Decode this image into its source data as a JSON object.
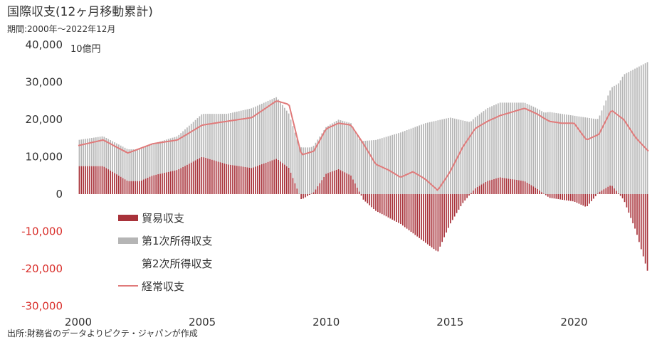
{
  "title": "国際収支(12ヶ月移動累計)",
  "subtitle": "期間:2000年〜2022年12月",
  "unit_label": "10億円",
  "source": "出所:財務省のデータよりピクテ・ジャパンが作成",
  "colors": {
    "trade": "#a8323a",
    "primary_income": "#b5b5b5",
    "secondary_income": "#ffffff",
    "current_account": "#e07a7a",
    "negative_tick": "#d9302c",
    "positive_tick": "#333333"
  },
  "chart_data": {
    "type": "bar",
    "stacked": true,
    "x_range": [
      2000,
      2023
    ],
    "ylim": [
      -30000,
      40000
    ],
    "y_ticks": [
      "40,000",
      "30,000",
      "20,000",
      "10,000",
      "0",
      "-10,000",
      "-20,000",
      "-30,000"
    ],
    "y_tick_values": [
      40000,
      30000,
      20000,
      10000,
      0,
      -10000,
      -20000,
      -30000
    ],
    "x_ticks": [
      "2000",
      "2005",
      "2010",
      "2015",
      "2020"
    ],
    "x_tick_values": [
      2000,
      2005,
      2010,
      2015,
      2020
    ],
    "grid": false,
    "legend_position": "lower-left",
    "series": [
      {
        "name": "貿易収支",
        "style": "bar",
        "keypoints": [
          [
            2000.0,
            7500
          ],
          [
            2001.0,
            7500
          ],
          [
            2001.5,
            5500
          ],
          [
            2002.0,
            3500
          ],
          [
            2002.5,
            3500
          ],
          [
            2003.0,
            5000
          ],
          [
            2004.0,
            6500
          ],
          [
            2005.0,
            10000
          ],
          [
            2006.0,
            8000
          ],
          [
            2007.0,
            7000
          ],
          [
            2008.0,
            9500
          ],
          [
            2008.5,
            7000
          ],
          [
            2009.0,
            -1500
          ],
          [
            2009.5,
            500
          ],
          [
            2010.0,
            5500
          ],
          [
            2010.5,
            6700
          ],
          [
            2011.0,
            5000
          ],
          [
            2011.5,
            -1500
          ],
          [
            2012.0,
            -4500
          ],
          [
            2013.0,
            -8000
          ],
          [
            2014.0,
            -13000
          ],
          [
            2014.5,
            -15500
          ],
          [
            2015.0,
            -8000
          ],
          [
            2015.5,
            -2500
          ],
          [
            2016.0,
            1500
          ],
          [
            2016.5,
            3500
          ],
          [
            2017.0,
            4500
          ],
          [
            2018.0,
            3500
          ],
          [
            2018.5,
            1500
          ],
          [
            2019.0,
            -1000
          ],
          [
            2019.5,
            -1500
          ],
          [
            2020.0,
            -2000
          ],
          [
            2020.5,
            -3500
          ],
          [
            2021.0,
            500
          ],
          [
            2021.5,
            2500
          ],
          [
            2022.0,
            -1500
          ],
          [
            2022.5,
            -10000
          ],
          [
            2023.0,
            -21500
          ]
        ]
      },
      {
        "name": "第1次所得収支",
        "style": "bar",
        "keypoints": [
          [
            2000.0,
            7000
          ],
          [
            2001.0,
            8000
          ],
          [
            2002.0,
            8500
          ],
          [
            2003.0,
            8500
          ],
          [
            2004.0,
            9000
          ],
          [
            2005.0,
            11500
          ],
          [
            2006.0,
            13500
          ],
          [
            2007.0,
            16000
          ],
          [
            2008.0,
            16500
          ],
          [
            2009.0,
            12500
          ],
          [
            2010.0,
            12500
          ],
          [
            2011.0,
            14000
          ],
          [
            2012.0,
            14500
          ],
          [
            2013.0,
            16500
          ],
          [
            2014.0,
            19000
          ],
          [
            2015.0,
            20500
          ],
          [
            2016.0,
            19000
          ],
          [
            2017.0,
            20000
          ],
          [
            2018.0,
            21000
          ],
          [
            2019.0,
            22000
          ],
          [
            2020.0,
            21000
          ],
          [
            2021.0,
            20000
          ],
          [
            2022.0,
            32000
          ],
          [
            2023.0,
            35500
          ]
        ]
      },
      {
        "name": "第2次所得収支",
        "style": "bar",
        "keypoints": [
          [
            2000.0,
            -1000
          ],
          [
            2023.0,
            -2500
          ]
        ]
      },
      {
        "name": "経常収支",
        "style": "line",
        "keypoints": [
          [
            2000.0,
            13000
          ],
          [
            2001.0,
            14500
          ],
          [
            2002.0,
            11000
          ],
          [
            2003.0,
            13500
          ],
          [
            2004.0,
            14500
          ],
          [
            2005.0,
            18500
          ],
          [
            2006.0,
            19500
          ],
          [
            2007.0,
            20500
          ],
          [
            2008.0,
            25000
          ],
          [
            2008.5,
            24000
          ],
          [
            2009.0,
            10500
          ],
          [
            2009.5,
            11500
          ],
          [
            2010.0,
            17500
          ],
          [
            2010.5,
            19000
          ],
          [
            2011.0,
            18500
          ],
          [
            2011.5,
            13500
          ],
          [
            2012.0,
            8000
          ],
          [
            2012.5,
            6500
          ],
          [
            2013.0,
            4500
          ],
          [
            2013.5,
            6000
          ],
          [
            2014.0,
            4000
          ],
          [
            2014.5,
            1000
          ],
          [
            2015.0,
            6000
          ],
          [
            2015.5,
            12500
          ],
          [
            2016.0,
            17500
          ],
          [
            2016.5,
            19500
          ],
          [
            2017.0,
            21000
          ],
          [
            2017.5,
            22000
          ],
          [
            2018.0,
            23000
          ],
          [
            2018.5,
            21500
          ],
          [
            2019.0,
            19500
          ],
          [
            2019.5,
            19000
          ],
          [
            2020.0,
            19000
          ],
          [
            2020.5,
            14500
          ],
          [
            2021.0,
            16000
          ],
          [
            2021.5,
            22500
          ],
          [
            2022.0,
            20000
          ],
          [
            2022.5,
            15000
          ],
          [
            2023.0,
            11500
          ]
        ]
      }
    ]
  }
}
